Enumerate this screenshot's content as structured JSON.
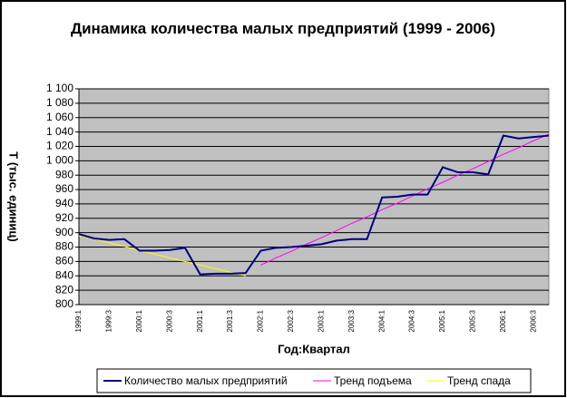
{
  "chart_data": {
    "type": "line",
    "title": "Динамика количества малых предприятий (1999 - 2006)",
    "ylabel": "Т (тыс. единиц)",
    "xlabel": "Год:Квартал",
    "categories": [
      "1999:1",
      null,
      "1999:3",
      null,
      "2000:1",
      null,
      "2000:3",
      null,
      "2001:1",
      null,
      "2001:3",
      null,
      "2002:1",
      null,
      "2002:3",
      null,
      "2003:1",
      null,
      "2003:3",
      null,
      "2004:1",
      null,
      "2004:3",
      null,
      "2005:1",
      null,
      "2005:3",
      null,
      "2006:1",
      null,
      "2006:3",
      null
    ],
    "series": [
      {
        "name": "Количество малых предприятий",
        "color": "#000080",
        "values": [
          898,
          892,
          890,
          891,
          875,
          875,
          876,
          879,
          842,
          843,
          843,
          844,
          875,
          879,
          880,
          882,
          884,
          889,
          891,
          891,
          949,
          950,
          953,
          953,
          991,
          984,
          984,
          981,
          1035,
          1031,
          1033,
          1035
        ]
      },
      {
        "name": "Тренд подъема",
        "color": "#ff00ff",
        "values": [
          null,
          null,
          null,
          null,
          null,
          null,
          null,
          null,
          null,
          null,
          null,
          null,
          855,
          865,
          874,
          884,
          893,
          903,
          913,
          922,
          932,
          941,
          951,
          961,
          970,
          980,
          989,
          999,
          1009,
          1018,
          1028,
          1037
        ]
      },
      {
        "name": "Тренд спада",
        "color": "#ffff00",
        "values": [
          896,
          891,
          886,
          881,
          875,
          870,
          865,
          860,
          855,
          850,
          845,
          840,
          null,
          null,
          null,
          null,
          null,
          null,
          null,
          null,
          null,
          null,
          null,
          null,
          null,
          null,
          null,
          null,
          null,
          null,
          null,
          null
        ]
      }
    ],
    "ylim": [
      800,
      1100
    ],
    "yticks": [
      800,
      820,
      840,
      860,
      880,
      900,
      920,
      940,
      960,
      980,
      {
        "value": 1000,
        "label": "1 000"
      },
      {
        "value": 1020,
        "label": "1 020"
      },
      {
        "value": 1040,
        "label": "1 040"
      },
      {
        "value": 1060,
        "label": "1 060"
      },
      {
        "value": 1080,
        "label": "1 080"
      },
      {
        "value": 1100,
        "label": "1 100"
      }
    ],
    "grid": true,
    "plot_background": "#c0c0c0",
    "legend": "bottom"
  }
}
